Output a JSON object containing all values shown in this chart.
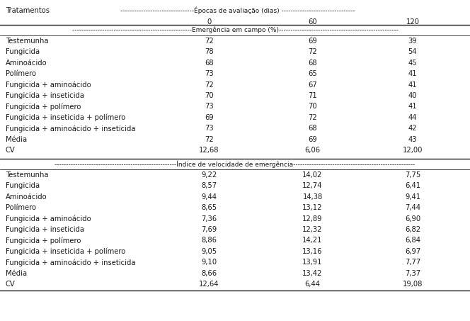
{
  "header_epocas": "--------------------------------Épocas de avaliação (dias) --------------------------------",
  "col_tratamentos": "Tratamentos",
  "col0": "0",
  "col60": "60",
  "col120": "120",
  "section1_label": "----------------------------------------------------Emergência em campo (%)----------------------------------------------------",
  "section1_rows": [
    [
      "Testemunha",
      "72",
      "69",
      "39"
    ],
    [
      "Fungicida",
      "78",
      "72",
      "54"
    ],
    [
      "Aminoácido",
      "68",
      "68",
      "45"
    ],
    [
      "Polímero",
      "73",
      "65",
      "41"
    ],
    [
      "Fungicida + aminoácido",
      "72",
      "67",
      "41"
    ],
    [
      "Fungicida + inseticida",
      "70",
      "71",
      "40"
    ],
    [
      "Fungicida + polímero",
      "73",
      "70",
      "41"
    ],
    [
      "Fungicida + inseticida + polímero",
      "69",
      "72",
      "44"
    ],
    [
      "Fungicida + aminoácido + inseticida",
      "73",
      "68",
      "42"
    ],
    [
      "Média",
      "72",
      "69",
      "43"
    ],
    [
      "CV",
      "12,68",
      "6,06",
      "12,00"
    ]
  ],
  "section2_label": "-----------------------------------------------------Índice de velocidade de emergência-----------------------------------------------------",
  "section2_rows": [
    [
      "Testemunha",
      "9,22",
      "14,02",
      "7,75"
    ],
    [
      "Fungicida",
      "8,57",
      "12,74",
      "6,41"
    ],
    [
      "Aminoácido",
      "9,44",
      "14,38",
      "9,41"
    ],
    [
      "Polímero",
      "8,65",
      "13,12",
      "7,44"
    ],
    [
      "Fungicida + aminoácido",
      "7,36",
      "12,89",
      "6,90"
    ],
    [
      "Fungicida + inseticida",
      "7,69",
      "12,32",
      "6,82"
    ],
    [
      "Fungicida + polímero",
      "8,86",
      "14,21",
      "6,84"
    ],
    [
      "Fungicida + inseticida + polímero",
      "9,05",
      "13,16",
      "6,97"
    ],
    [
      "Fungicida + aminoácido + inseticida",
      "9,10",
      "13,91",
      "7,77"
    ],
    [
      "Média",
      "8,66",
      "13,42",
      "7,37"
    ],
    [
      "CV",
      "12,64",
      "6,44",
      "19,08"
    ]
  ],
  "bg_color": "#ffffff",
  "text_color": "#1a1a1a",
  "font_size": 7.2,
  "label_font_size": 6.5
}
